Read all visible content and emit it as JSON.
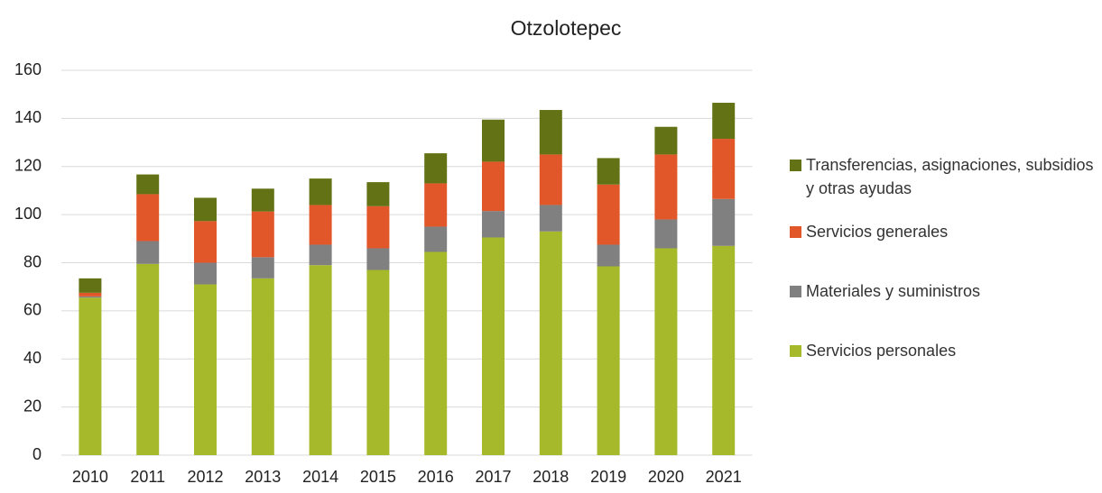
{
  "chart_data": {
    "type": "stacked_bar",
    "title": "Otzolotepec",
    "categories": [
      "2010",
      "2011",
      "2012",
      "2013",
      "2014",
      "2015",
      "2016",
      "2017",
      "2018",
      "2019",
      "2020",
      "2021"
    ],
    "series": [
      {
        "name": "Servicios personales",
        "color": "#a5b92a",
        "values": [
          65.5,
          79.5,
          71,
          73.5,
          79,
          77,
          84.5,
          90.5,
          93,
          78.5,
          86,
          87
        ]
      },
      {
        "name": "Materiales y suministros",
        "color": "#808080",
        "values": [
          0.5,
          9.5,
          9,
          8.8,
          8.5,
          9,
          10.5,
          11,
          11,
          9,
          12,
          19.5
        ]
      },
      {
        "name": "Servicios generales",
        "color": "#e2572a",
        "values": [
          1.5,
          19.5,
          17.3,
          19,
          16.5,
          17.5,
          18,
          20.5,
          21,
          25,
          27,
          25
        ]
      },
      {
        "name": "Transferencias, asignaciones, subsidios y otras ayudas",
        "color": "#647216",
        "values": [
          6,
          8.2,
          9.7,
          9.5,
          11,
          10,
          12.5,
          17.5,
          18.5,
          11,
          11.5,
          15
        ]
      }
    ],
    "ylim": [
      0,
      160
    ],
    "yticks": [
      0,
      20,
      40,
      60,
      80,
      100,
      120,
      140,
      160
    ],
    "grid": true,
    "legend": "right"
  }
}
